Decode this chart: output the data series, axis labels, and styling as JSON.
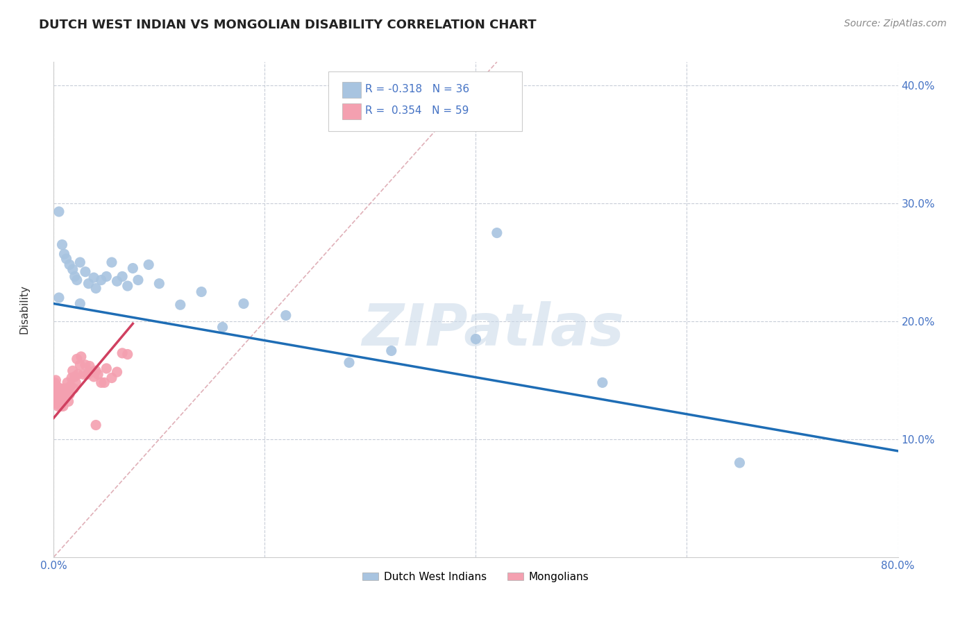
{
  "title": "DUTCH WEST INDIAN VS MONGOLIAN DISABILITY CORRELATION CHART",
  "source": "Source: ZipAtlas.com",
  "xlabel": "",
  "ylabel": "Disability",
  "xlim": [
    0.0,
    0.8
  ],
  "ylim": [
    0.0,
    0.42
  ],
  "xticks": [
    0.0,
    0.2,
    0.4,
    0.6,
    0.8
  ],
  "xtick_labels": [
    "0.0%",
    "",
    "",
    "",
    "80.0%"
  ],
  "yticks": [
    0.1,
    0.2,
    0.3,
    0.4
  ],
  "ytick_labels_right": [
    "10.0%",
    "20.0%",
    "30.0%",
    "40.0%"
  ],
  "R_blue": -0.318,
  "N_blue": 36,
  "R_pink": 0.354,
  "N_pink": 59,
  "blue_color": "#a8c4e0",
  "pink_color": "#f4a0b0",
  "blue_line_color": "#1e6db5",
  "pink_line_color": "#d04060",
  "diag_color": "#e0b0b8",
  "legend_label_blue": "Dutch West Indians",
  "legend_label_pink": "Mongolians",
  "blue_dots_x": [
    0.005,
    0.008,
    0.01,
    0.012,
    0.015,
    0.018,
    0.02,
    0.022,
    0.025,
    0.03,
    0.033,
    0.038,
    0.04,
    0.045,
    0.05,
    0.055,
    0.06,
    0.065,
    0.07,
    0.075,
    0.08,
    0.09,
    0.1,
    0.12,
    0.14,
    0.16,
    0.18,
    0.22,
    0.28,
    0.32,
    0.4,
    0.42,
    0.52,
    0.65,
    0.005,
    0.025
  ],
  "blue_dots_y": [
    0.293,
    0.265,
    0.257,
    0.253,
    0.248,
    0.244,
    0.238,
    0.235,
    0.25,
    0.242,
    0.232,
    0.237,
    0.228,
    0.235,
    0.238,
    0.25,
    0.234,
    0.238,
    0.23,
    0.245,
    0.235,
    0.248,
    0.232,
    0.214,
    0.225,
    0.195,
    0.215,
    0.205,
    0.165,
    0.175,
    0.185,
    0.275,
    0.148,
    0.08,
    0.22,
    0.215
  ],
  "pink_dots_x": [
    0.001,
    0.001,
    0.001,
    0.002,
    0.002,
    0.002,
    0.002,
    0.003,
    0.003,
    0.003,
    0.004,
    0.004,
    0.004,
    0.005,
    0.005,
    0.006,
    0.006,
    0.006,
    0.007,
    0.007,
    0.007,
    0.008,
    0.008,
    0.009,
    0.009,
    0.01,
    0.01,
    0.01,
    0.011,
    0.012,
    0.013,
    0.014,
    0.015,
    0.016,
    0.017,
    0.018,
    0.019,
    0.02,
    0.021,
    0.022,
    0.023,
    0.025,
    0.026,
    0.028,
    0.03,
    0.032,
    0.034,
    0.036,
    0.038,
    0.04,
    0.042,
    0.045,
    0.048,
    0.05,
    0.055,
    0.06,
    0.065,
    0.07,
    0.04
  ],
  "pink_dots_y": [
    0.133,
    0.14,
    0.148,
    0.133,
    0.138,
    0.143,
    0.15,
    0.13,
    0.137,
    0.145,
    0.128,
    0.135,
    0.142,
    0.133,
    0.14,
    0.13,
    0.137,
    0.143,
    0.128,
    0.135,
    0.142,
    0.132,
    0.138,
    0.128,
    0.135,
    0.133,
    0.138,
    0.143,
    0.135,
    0.14,
    0.148,
    0.132,
    0.138,
    0.145,
    0.152,
    0.158,
    0.143,
    0.153,
    0.148,
    0.168,
    0.155,
    0.163,
    0.17,
    0.155,
    0.163,
    0.155,
    0.162,
    0.157,
    0.153,
    0.158,
    0.155,
    0.148,
    0.148,
    0.16,
    0.152,
    0.157,
    0.173,
    0.172,
    0.112
  ],
  "title_fontsize": 13,
  "axis_label_fontsize": 11,
  "tick_fontsize": 11,
  "legend_fontsize": 11,
  "source_fontsize": 10,
  "watermark_text": "ZIPatlas",
  "watermark_color": "#c8d8e8",
  "watermark_fontsize": 60,
  "background_color": "#ffffff",
  "grid_color": "#c8cdd8",
  "blue_line_start_x": 0.0,
  "blue_line_start_y": 0.215,
  "blue_line_end_x": 0.8,
  "blue_line_end_y": 0.09,
  "pink_line_start_x": 0.0,
  "pink_line_start_y": 0.118,
  "pink_line_end_x": 0.075,
  "pink_line_end_y": 0.198
}
